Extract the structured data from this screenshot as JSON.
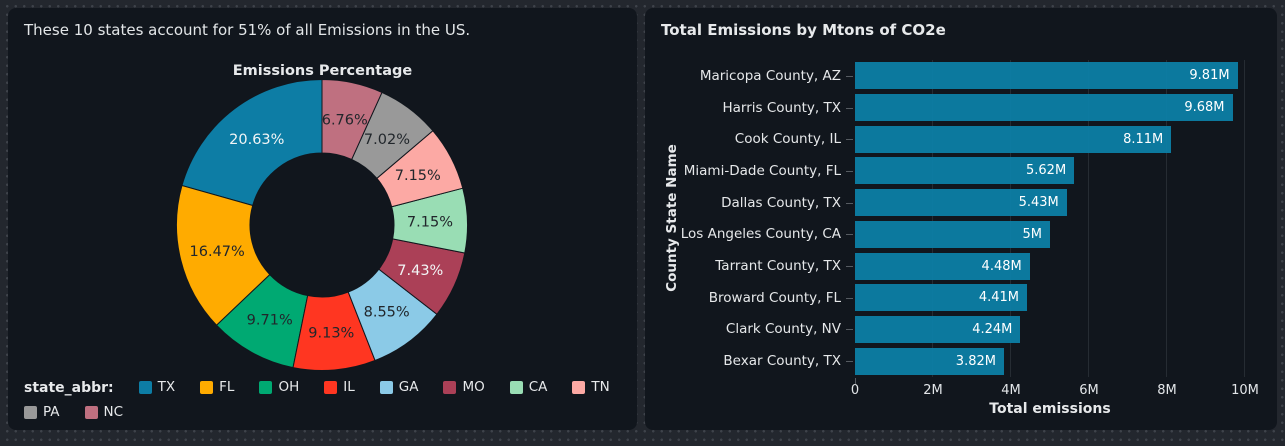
{
  "theme": {
    "canvas_bg": "#23272E",
    "dot_color": "#3E434A",
    "panel_bg": "#11161D",
    "text_color": "#E7E9EB",
    "gridline_color": "#262C33",
    "tick_color": "#565B61",
    "bar_color": "#0C80A7"
  },
  "left_panel": {
    "header": "These 10 states account for 51% of all Emissions in the US.",
    "legend_title": "state_abbr:"
  },
  "right_panel": {
    "title": "Total Emissions by Mtons of CO2e"
  },
  "chart_data": [
    {
      "type": "pie",
      "subtype": "donut",
      "title": "Emissions Percentage",
      "start_angle": "top",
      "direction": "counterclockwise",
      "inner_radius_ratio": 0.49,
      "legend_title": "state_abbr:",
      "legend_position": "bottom",
      "labels": [
        "TX",
        "FL",
        "OH",
        "IL",
        "GA",
        "MO",
        "CA",
        "TN",
        "PA",
        "NC"
      ],
      "values": [
        20.63,
        16.47,
        9.71,
        9.13,
        8.55,
        7.43,
        7.15,
        7.15,
        7.02,
        6.76
      ],
      "value_labels": [
        "20.63%",
        "16.47%",
        "9.71%",
        "9.13%",
        "8.55%",
        "7.43%",
        "7.15%",
        "7.15%",
        "7.02%",
        "6.76%"
      ],
      "colors": [
        "#0D7DA5",
        "#FFAB00",
        "#00A972",
        "#FF3621",
        "#8BCAE7",
        "#AB4057",
        "#99DDB4",
        "#FCA9A4",
        "#999999",
        "#BF7080"
      ],
      "label_text_colors": [
        "#F2F5F6",
        "#21262B",
        "#21262B",
        "#21262B",
        "#21262B",
        "#F2F5F6",
        "#21262B",
        "#21262B",
        "#21262B",
        "#21262B"
      ]
    },
    {
      "type": "bar",
      "orientation": "horizontal",
      "title": "Total Emissions by Mtons of CO2e",
      "categories": [
        "Maricopa County, AZ",
        "Harris County, TX",
        "Cook County, IL",
        "Miami-Dade County, FL",
        "Dallas County, TX",
        "Los Angeles County, CA",
        "Tarrant County, TX",
        "Broward County, FL",
        "Clark County, NV",
        "Bexar County, TX"
      ],
      "values": [
        9.81,
        9.68,
        8.11,
        5.62,
        5.43,
        5,
        4.48,
        4.41,
        4.24,
        3.82
      ],
      "value_labels": [
        "9.81M",
        "9.68M",
        "8.11M",
        "5.62M",
        "5.43M",
        "5M",
        "4.48M",
        "4.41M",
        "4.24M",
        "3.82M"
      ],
      "value_unit": "millions of Mtons CO2e",
      "xlabel": "Total emissions",
      "ylabel": "County State Name",
      "xlim": [
        0,
        10
      ],
      "xticks": [
        0,
        2,
        4,
        6,
        8,
        10
      ],
      "xtick_labels": [
        "0",
        "2M",
        "4M",
        "6M",
        "8M",
        "10M"
      ],
      "bar_color": "#0C80A7",
      "grid": true,
      "legend_position": "none"
    }
  ]
}
